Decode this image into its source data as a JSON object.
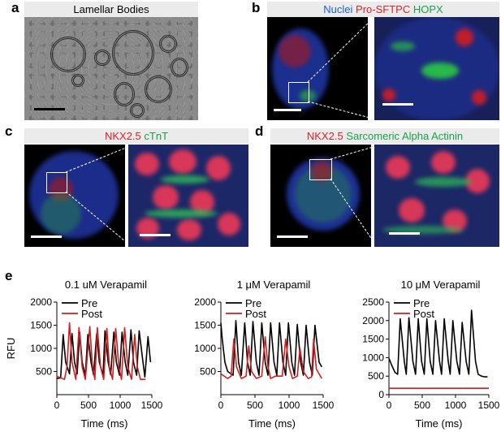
{
  "panels": {
    "a": {
      "label": "a",
      "title": "Lamellar Bodies"
    },
    "b": {
      "label": "b",
      "stains": [
        {
          "text": "Nuclei",
          "color": "#1f5fd6"
        },
        {
          "text": "Pro-SFTPC",
          "color": "#e0202a"
        },
        {
          "text": "HOPX",
          "color": "#1aa24a"
        }
      ]
    },
    "c": {
      "label": "c",
      "stains": [
        {
          "text": "NKX2.5",
          "color": "#e0202a"
        },
        {
          "text": "cTnT",
          "color": "#1aa24a"
        }
      ]
    },
    "d": {
      "label": "d",
      "stains": [
        {
          "text": "NKX2.5",
          "color": "#e0202a"
        },
        {
          "text": "Sarcomeric Alpha Actinin",
          "color": "#1aa24a"
        }
      ]
    },
    "e": {
      "label": "e"
    }
  },
  "chart_data": [
    {
      "type": "line",
      "title": "0.1 uM Verapamil",
      "xlabel": "Time (ms)",
      "ylabel": "RFU",
      "xlim": [
        0,
        1500
      ],
      "ylim": [
        0,
        2000
      ],
      "xticks": [
        0,
        500,
        1000,
        1500
      ],
      "yticks": [
        500,
        1000,
        1500,
        2000
      ],
      "legend": "top-left",
      "series": [
        {
          "name": "Pre",
          "color": "#000000",
          "x": [
            0,
            60,
            100,
            140,
            200,
            240,
            280,
            320,
            360,
            400,
            450,
            490,
            540,
            580,
            630,
            670,
            730,
            760,
            810,
            850,
            900,
            940,
            990,
            1030,
            1080,
            1120,
            1170,
            1210,
            1260,
            1300,
            1360,
            1390,
            1440,
            1480
          ],
          "y": [
            350,
            360,
            1300,
            700,
            450,
            1320,
            700,
            450,
            1350,
            700,
            420,
            1300,
            700,
            430,
            1320,
            700,
            420,
            1380,
            700,
            430,
            1350,
            700,
            420,
            1350,
            700,
            420,
            1400,
            700,
            420,
            1380,
            700,
            380,
            1250,
            700
          ]
        },
        {
          "name": "Post",
          "color": "#d11f1f",
          "x": [
            0,
            120,
            160,
            200,
            240,
            300,
            350,
            400,
            450,
            520,
            560,
            600,
            640,
            690,
            740,
            790,
            830,
            880,
            930,
            980,
            1020,
            1070,
            1120,
            1180,
            1230,
            1270,
            1320,
            1400
          ],
          "y": [
            400,
            330,
            600,
            1550,
            700,
            330,
            1450,
            600,
            330,
            1470,
            650,
            330,
            1450,
            600,
            330,
            1430,
            600,
            330,
            1430,
            600,
            330,
            1450,
            600,
            330,
            1300,
            600,
            330,
            330
          ]
        }
      ]
    },
    {
      "type": "line",
      "title": "1 μM Verapamil",
      "xlabel": "Time (ms)",
      "xlim": [
        0,
        1500
      ],
      "ylim": [
        0,
        2000
      ],
      "xticks": [
        0,
        500,
        1000,
        1500
      ],
      "yticks": [
        500,
        1000,
        1500,
        2000
      ],
      "legend": "top-left",
      "series": [
        {
          "name": "Pre",
          "color": "#000000",
          "x": [
            0,
            20,
            60,
            100,
            180,
            220,
            260,
            300,
            350,
            390,
            430,
            470,
            520,
            560,
            600,
            650,
            690,
            730,
            780,
            820,
            860,
            910,
            950,
            990,
            1040,
            1080,
            1120,
            1170,
            1210,
            1250,
            1300,
            1340,
            1380,
            1440,
            1480
          ],
          "y": [
            1550,
            1200,
            700,
            500,
            420,
            1600,
            700,
            420,
            1550,
            700,
            420,
            1580,
            700,
            420,
            1550,
            700,
            420,
            1550,
            700,
            420,
            1550,
            700,
            420,
            1550,
            700,
            420,
            1520,
            700,
            420,
            1500,
            700,
            420,
            1500,
            700,
            600
          ]
        },
        {
          "name": "Post",
          "color": "#d11f1f",
          "x": [
            0,
            100,
            150,
            190,
            230,
            300,
            370,
            410,
            450,
            520,
            600,
            650,
            690,
            730,
            800,
            900,
            950,
            1000,
            1050,
            1120,
            1160,
            1210,
            1280,
            1330,
            1360,
            1400,
            1480
          ],
          "y": [
            450,
            350,
            400,
            1200,
            600,
            350,
            400,
            1050,
            500,
            350,
            400,
            1250,
            600,
            350,
            400,
            400,
            1200,
            600,
            350,
            400,
            1000,
            500,
            350,
            380,
            1200,
            550,
            350
          ]
        }
      ]
    },
    {
      "type": "line",
      "title": "10 μM Verapamil",
      "xlabel": "Time (ms)",
      "xlim": [
        0,
        1500
      ],
      "ylim": [
        0,
        2500
      ],
      "xticks": [
        0,
        500,
        1000,
        1500
      ],
      "yticks": [
        0,
        500,
        1000,
        1500,
        2000,
        2500
      ],
      "legend": "top-left",
      "series": [
        {
          "name": "Pre",
          "color": "#000000",
          "x": [
            0,
            40,
            90,
            130,
            170,
            230,
            260,
            300,
            360,
            400,
            440,
            490,
            530,
            570,
            620,
            660,
            700,
            760,
            790,
            830,
            890,
            920,
            960,
            1020,
            1060,
            1100,
            1160,
            1200,
            1240,
            1300,
            1340,
            1390,
            1440,
            1480
          ],
          "y": [
            980,
            800,
            600,
            550,
            2050,
            900,
            550,
            2080,
            900,
            550,
            2050,
            900,
            550,
            2050,
            900,
            550,
            2000,
            900,
            550,
            2050,
            900,
            550,
            2000,
            900,
            550,
            1950,
            900,
            550,
            2280,
            900,
            550,
            500,
            480,
            480
          ]
        },
        {
          "name": "Post",
          "color": "#d11f1f",
          "x": [
            0,
            1500
          ],
          "y": [
            170,
            170
          ]
        }
      ]
    }
  ]
}
